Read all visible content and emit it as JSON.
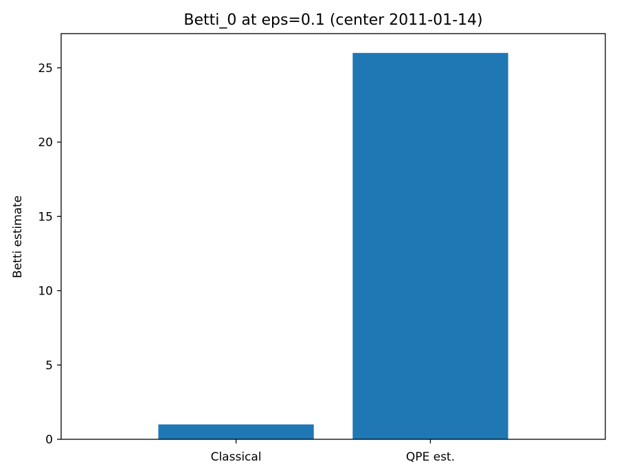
{
  "chart_data": {
    "type": "bar",
    "title": "Betti_0 at eps=0.1 (center 2011-01-14)",
    "xlabel": "",
    "ylabel": "Betti estimate",
    "categories": [
      "Classical",
      "QPE est."
    ],
    "values": [
      1,
      26
    ],
    "ylim": [
      0,
      27.3
    ],
    "yticks": [
      0,
      5,
      10,
      15,
      20,
      25
    ],
    "grid": false,
    "bar_color": "#1f77b4"
  }
}
